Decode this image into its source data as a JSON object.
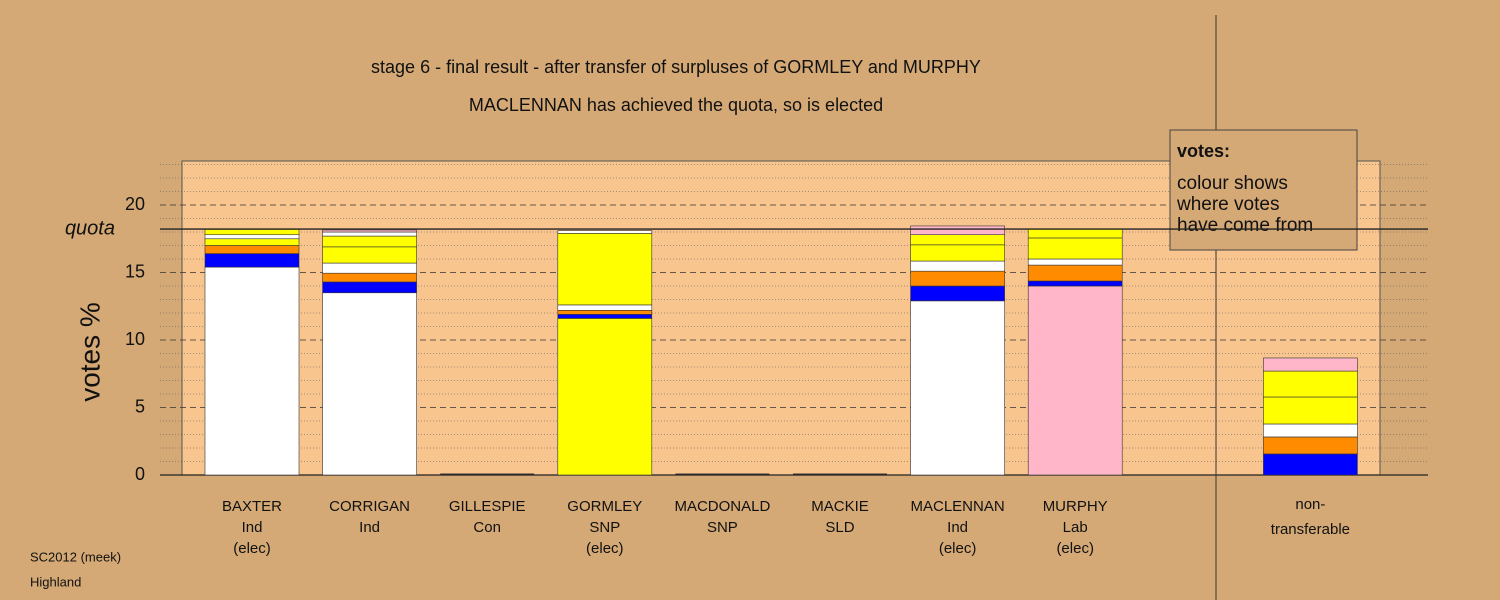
{
  "chart_data": {
    "type": "stacked-bar",
    "title": "stage 6 - final result - after transfer of surpluses of GORMLEY and MURPHY",
    "subtitle": "MACLENNAN has achieved the quota, so is elected",
    "y_label": "votes %",
    "quota": {
      "label": "quota",
      "value": 18.22
    },
    "legend": {
      "title": "votes:",
      "lines": [
        "colour shows",
        "where votes",
        "have come from"
      ]
    },
    "footer": [
      "SC2012 (meek)",
      "Highland"
    ],
    "categories": [
      [
        "BAXTER",
        "Ind",
        "(elec)"
      ],
      [
        "CORRIGAN",
        "Ind"
      ],
      [
        "GILLESPIE",
        "Con"
      ],
      [
        "GORMLEY",
        "SNP",
        "(elec)"
      ],
      [
        "MACDONALD",
        "SNP"
      ],
      [
        "MACKIE",
        "SLD"
      ],
      [
        "MACLENNAN",
        "Ind",
        "(elec)"
      ],
      [
        "MURPHY",
        "Lab",
        "(elec)"
      ],
      null,
      [
        "non-",
        "transferable"
      ]
    ],
    "stacks": [
      [
        {
          "color": "#ffffff",
          "value": 15.4
        },
        {
          "color": "#0000ff",
          "value": 1.0
        },
        {
          "color": "#ff8c00",
          "value": 0.6
        },
        {
          "color": "#ffff00",
          "value": 0.5
        },
        {
          "color": "#ffffff",
          "value": 0.3
        },
        {
          "color": "#ffff00",
          "value": 0.4
        }
      ],
      [
        {
          "color": "#ffffff",
          "value": 13.5
        },
        {
          "color": "#0000ff",
          "value": 0.8
        },
        {
          "color": "#ff8c00",
          "value": 0.65
        },
        {
          "color": "#ffffff",
          "value": 0.75
        },
        {
          "color": "#ffff00",
          "value": 1.2
        },
        {
          "color": "#ffff00",
          "value": 0.8
        },
        {
          "color": "#ffffff",
          "value": 0.3
        },
        {
          "color": "#ffb6c8",
          "value": 0.15
        }
      ],
      [],
      [
        {
          "color": "#ffff00",
          "value": 11.6
        },
        {
          "color": "#0000ff",
          "value": 0.3
        },
        {
          "color": "#ff8c00",
          "value": 0.3
        },
        {
          "color": "#ffffff",
          "value": 0.4
        },
        {
          "color": "#ffff00",
          "value": 5.3
        },
        {
          "color": "#ffffff",
          "value": 0.2
        }
      ],
      [],
      [],
      [
        {
          "color": "#ffffff",
          "value": 12.9
        },
        {
          "color": "#0000ff",
          "value": 1.1
        },
        {
          "color": "#ff8c00",
          "value": 1.1
        },
        {
          "color": "#ffffff",
          "value": 0.75
        },
        {
          "color": "#ffff00",
          "value": 1.2
        },
        {
          "color": "#ffff00",
          "value": 0.75
        },
        {
          "color": "#ffb6c8",
          "value": 0.65
        }
      ],
      [
        {
          "color": "#ffb6c8",
          "value": 14.0
        },
        {
          "color": "#0000ff",
          "value": 0.37
        },
        {
          "color": "#ff8c00",
          "value": 1.18
        },
        {
          "color": "#ffffff",
          "value": 0.45
        },
        {
          "color": "#ffff00",
          "value": 1.56
        },
        {
          "color": "#ffff00",
          "value": 0.66
        }
      ],
      [],
      [
        {
          "color": "#0000ff",
          "value": 1.56
        },
        {
          "color": "#ff8c00",
          "value": 1.26
        },
        {
          "color": "#ffffff",
          "value": 0.96
        },
        {
          "color": "#ffff00",
          "value": 2.0
        },
        {
          "color": "#ffff00",
          "value": 1.92
        },
        {
          "color": "#ffb6c8",
          "value": 0.97
        }
      ]
    ],
    "ylim": [
      0,
      23.26
    ],
    "yticks": [
      0,
      5,
      10,
      15,
      20
    ],
    "minor_yticks": [
      1,
      2,
      3,
      4,
      6,
      7,
      8,
      9,
      11,
      12,
      13,
      14,
      16,
      17,
      18,
      19,
      21,
      22,
      23
    ],
    "grid": true
  }
}
